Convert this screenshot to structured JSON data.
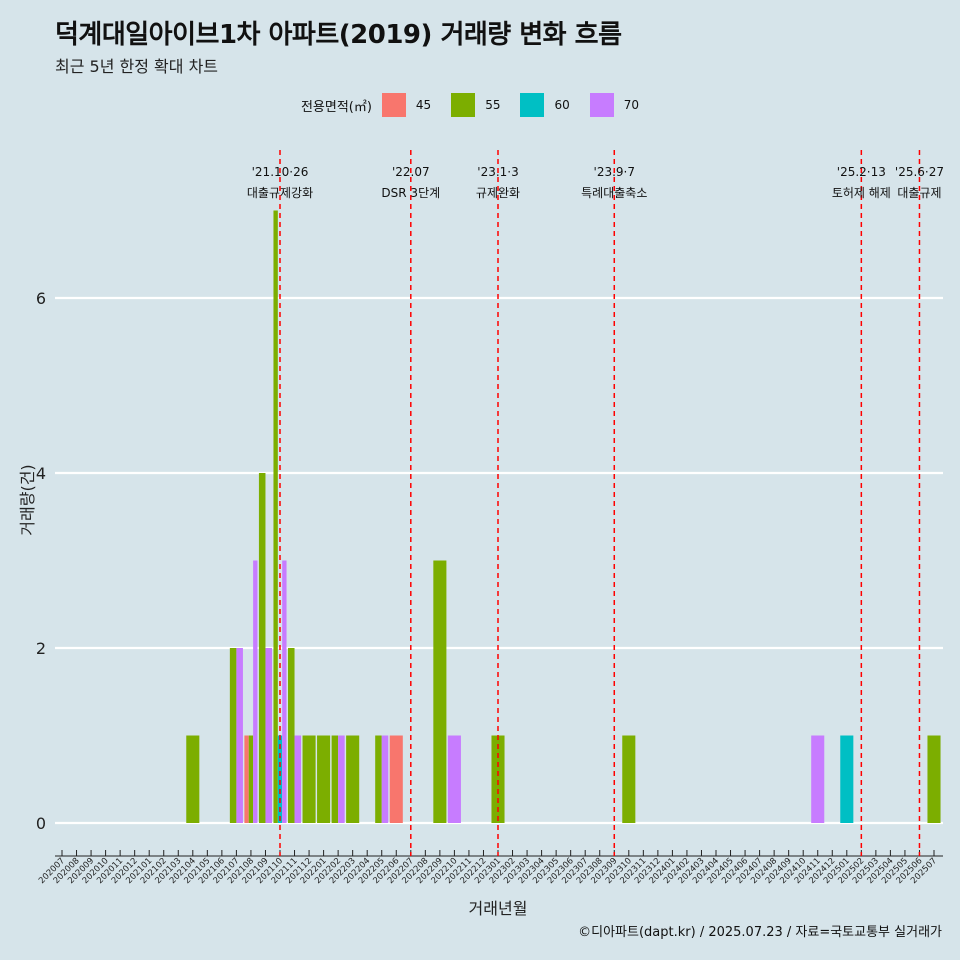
{
  "title": "덕계대일아이브1차 아파트(2019) 거래량 변화 흐름",
  "subtitle": "최근 5년 한정 확대 차트",
  "legend_title": "전용면적(㎡)",
  "caption": "©디아파트(dapt.kr) / 2025.07.23 / 자료=국토교통부 실거래가",
  "chart_data": {
    "type": "bar",
    "xlabel": "거래년월",
    "ylabel": "거래량(건)",
    "ylim": [
      -0.35,
      7.5
    ],
    "yticks": [
      0,
      2,
      4,
      6
    ],
    "grid": true,
    "legend_position": "top",
    "categories": [
      "202007",
      "202008",
      "202009",
      "202010",
      "202011",
      "202012",
      "202101",
      "202102",
      "202103",
      "202104",
      "202105",
      "202106",
      "202107",
      "202108",
      "202109",
      "202110",
      "202111",
      "202112",
      "202201",
      "202202",
      "202203",
      "202204",
      "202205",
      "202206",
      "202207",
      "202208",
      "202209",
      "202210",
      "202211",
      "202212",
      "202301",
      "202302",
      "202303",
      "202304",
      "202305",
      "202306",
      "202307",
      "202308",
      "202309",
      "202310",
      "202311",
      "202312",
      "202401",
      "202402",
      "202403",
      "202404",
      "202405",
      "202406",
      "202407",
      "202408",
      "202409",
      "202410",
      "202411",
      "202412",
      "202501",
      "202502",
      "202503",
      "202504",
      "202505",
      "202506",
      "202507"
    ],
    "series": [
      {
        "name": "45",
        "color": "#f8766d",
        "points": [
          {
            "x": "202108",
            "y": 1
          },
          {
            "x": "202206",
            "y": 1
          }
        ]
      },
      {
        "name": "55",
        "color": "#7cae00",
        "points": [
          {
            "x": "202104",
            "y": 1
          },
          {
            "x": "202107",
            "y": 2
          },
          {
            "x": "202108",
            "y": 1
          },
          {
            "x": "202109",
            "y": 4
          },
          {
            "x": "202110",
            "y": 7
          },
          {
            "x": "202111",
            "y": 2
          },
          {
            "x": "202112",
            "y": 1
          },
          {
            "x": "202201",
            "y": 1
          },
          {
            "x": "202202",
            "y": 1
          },
          {
            "x": "202203",
            "y": 1
          },
          {
            "x": "202205",
            "y": 1
          },
          {
            "x": "202209",
            "y": 3
          },
          {
            "x": "202301",
            "y": 1
          },
          {
            "x": "202310",
            "y": 1
          },
          {
            "x": "202507",
            "y": 1
          }
        ]
      },
      {
        "name": "60",
        "color": "#00bfc4",
        "points": [
          {
            "x": "202110",
            "y": 1
          },
          {
            "x": "202501",
            "y": 1
          }
        ]
      },
      {
        "name": "70",
        "color": "#c77cff",
        "points": [
          {
            "x": "202107",
            "y": 2
          },
          {
            "x": "202108",
            "y": 3
          },
          {
            "x": "202109",
            "y": 2
          },
          {
            "x": "202110",
            "y": 3
          },
          {
            "x": "202111",
            "y": 1
          },
          {
            "x": "202202",
            "y": 1
          },
          {
            "x": "202205",
            "y": 1
          },
          {
            "x": "202210",
            "y": 1
          },
          {
            "x": "202411",
            "y": 1
          }
        ]
      }
    ],
    "events": [
      {
        "x": "202110",
        "date": "'21.10·26",
        "label": "대출규제강화"
      },
      {
        "x": "202207",
        "date": "'22.07",
        "label": "DSR 3단계"
      },
      {
        "x": "202301",
        "date": "'23.1·3",
        "label": "규제완화"
      },
      {
        "x": "202309",
        "date": "'23.9·7",
        "label": "특례대출축소"
      },
      {
        "x": "202502",
        "date": "'25.2·13",
        "label": "토허제 해제"
      },
      {
        "x": "202506",
        "date": "'25.6·27",
        "label": "대출규제"
      }
    ],
    "event_line_color": "#ff0000"
  }
}
